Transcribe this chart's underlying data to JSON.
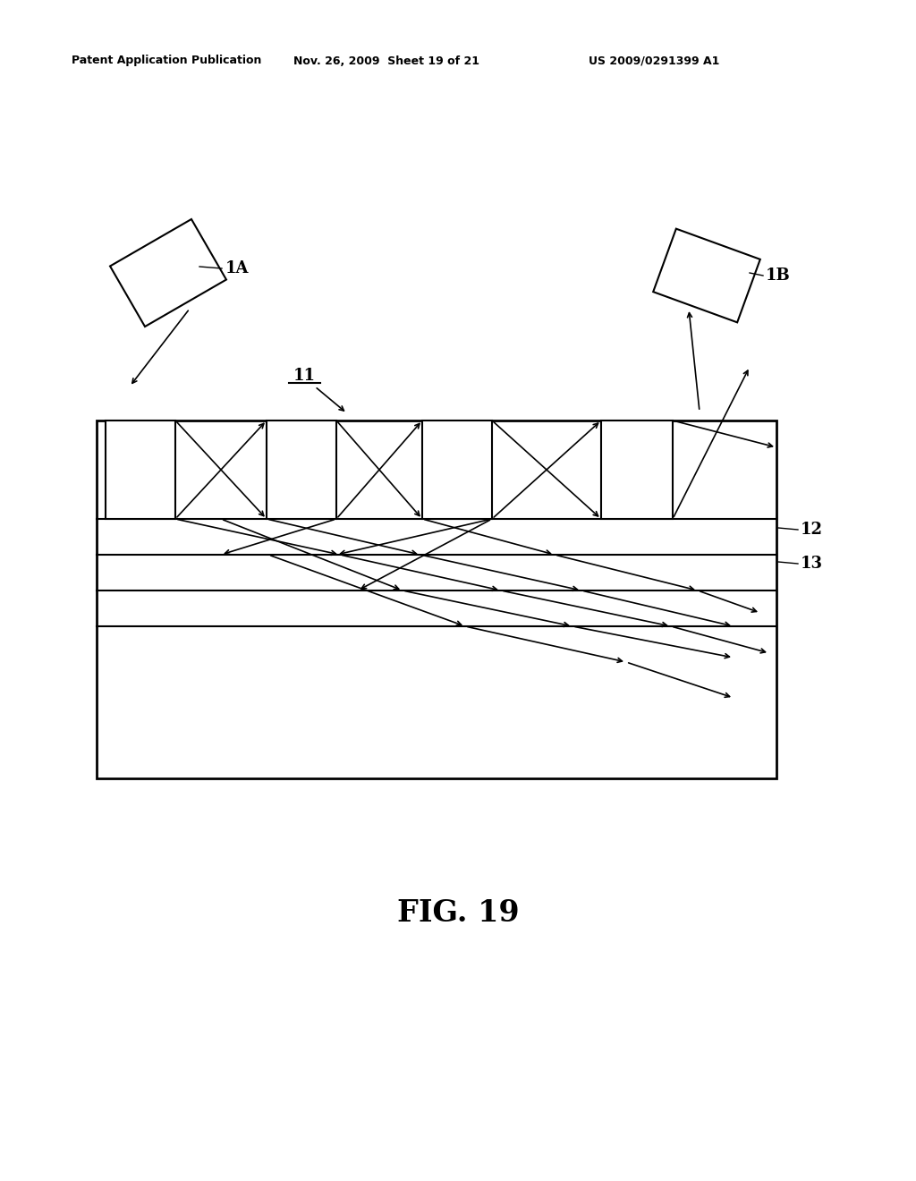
{
  "bg_color": "#ffffff",
  "fig_width": 10.24,
  "fig_height": 13.2,
  "dpi": 100,
  "header_left": "Patent Application Publication",
  "header_center": "Nov. 26, 2009  Sheet 19 of 21",
  "header_right": "US 2009/0291399 A1",
  "label_1A": "1A",
  "label_1B": "1B",
  "label_11": "11",
  "label_12": "12",
  "label_13": "13",
  "label_fig": "FIG. 19"
}
